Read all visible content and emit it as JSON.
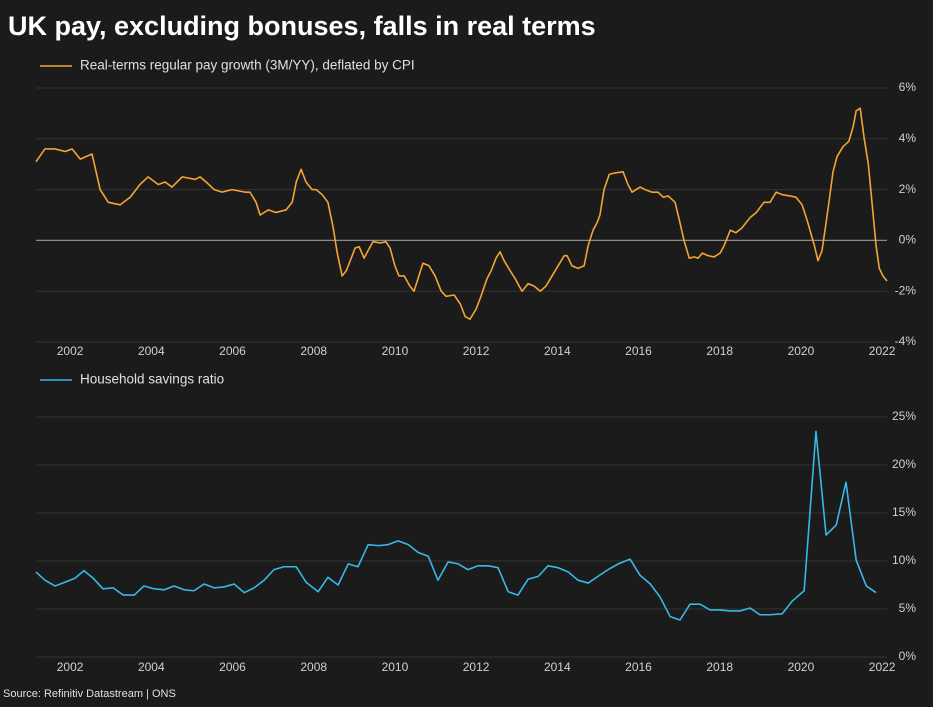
{
  "title": "UK pay, excluding bonuses, falls in real terms",
  "source": "Source: Refinitiv Datastream | ONS",
  "chart_data": [
    {
      "type": "line",
      "zero_line": true,
      "grid": true,
      "x": [
        2001.16,
        2001.38,
        2001.63,
        2001.88,
        2002.05,
        2002.25,
        2002.54,
        2002.74,
        2002.94,
        2003.23,
        2003.48,
        2003.72,
        2003.92,
        2004.17,
        2004.34,
        2004.51,
        2004.76,
        2005.08,
        2005.2,
        2005.35,
        2005.55,
        2005.74,
        2005.99,
        2006.31,
        2006.43,
        2006.58,
        2006.68,
        2006.88,
        2007.07,
        2007.32,
        2007.47,
        2007.57,
        2007.69,
        2007.81,
        2007.96,
        2008.06,
        2008.21,
        2008.35,
        2008.48,
        2008.58,
        2008.7,
        2008.8,
        2008.9,
        2009.02,
        2009.12,
        2009.24,
        2009.34,
        2009.46,
        2009.64,
        2009.78,
        2009.88,
        2010.0,
        2010.1,
        2010.23,
        2010.37,
        2010.47,
        2010.57,
        2010.69,
        2010.84,
        2010.99,
        2011.14,
        2011.26,
        2011.46,
        2011.61,
        2011.73,
        2011.85,
        2012.0,
        2012.12,
        2012.27,
        2012.37,
        2012.49,
        2012.59,
        2012.69,
        2012.84,
        2012.96,
        2013.13,
        2013.28,
        2013.43,
        2013.58,
        2013.72,
        2013.87,
        2014.02,
        2014.17,
        2014.24,
        2014.36,
        2014.51,
        2014.66,
        2014.76,
        2014.88,
        2014.98,
        2015.05,
        2015.15,
        2015.28,
        2015.4,
        2015.62,
        2015.74,
        2015.84,
        2015.94,
        2016.04,
        2016.16,
        2016.33,
        2016.48,
        2016.61,
        2016.73,
        2016.9,
        2017.02,
        2017.12,
        2017.25,
        2017.37,
        2017.47,
        2017.57,
        2017.71,
        2017.86,
        2018.01,
        2018.11,
        2018.26,
        2018.4,
        2018.55,
        2018.75,
        2018.9,
        2019.09,
        2019.24,
        2019.39,
        2019.54,
        2019.73,
        2019.88,
        2020.03,
        2020.17,
        2020.33,
        2020.42,
        2020.52,
        2020.62,
        2020.69,
        2020.79,
        2020.89,
        2021.04,
        2021.18,
        2021.29,
        2021.36,
        2021.46,
        2021.56,
        2021.66,
        2021.75,
        2021.85,
        2021.93,
        2022.02,
        2022.12
      ],
      "series": [
        {
          "name": "Real-terms regular pay growth (3M/YY), deflated by CPI",
          "color": "#f4a433",
          "values": [
            3.1,
            3.6,
            3.6,
            3.5,
            3.6,
            3.2,
            3.4,
            2.0,
            1.5,
            1.4,
            1.7,
            2.2,
            2.5,
            2.2,
            2.3,
            2.1,
            2.5,
            2.4,
            2.5,
            2.3,
            2.0,
            1.9,
            2.0,
            1.9,
            1.9,
            1.5,
            1.0,
            1.2,
            1.1,
            1.2,
            1.5,
            2.3,
            2.8,
            2.3,
            2.0,
            2.0,
            1.8,
            1.5,
            0.5,
            -0.5,
            -1.4,
            -1.2,
            -0.8,
            -0.3,
            -0.25,
            -0.7,
            -0.4,
            -0.05,
            -0.1,
            -0.05,
            -0.3,
            -1.0,
            -1.4,
            -1.4,
            -1.8,
            -2.0,
            -1.5,
            -0.9,
            -1.0,
            -1.4,
            -2.0,
            -2.2,
            -2.15,
            -2.5,
            -3.0,
            -3.1,
            -2.7,
            -2.2,
            -1.5,
            -1.2,
            -0.7,
            -0.45,
            -0.8,
            -1.2,
            -1.5,
            -2.0,
            -1.7,
            -1.8,
            -2.0,
            -1.8,
            -1.4,
            -1.0,
            -0.6,
            -0.6,
            -1.0,
            -1.1,
            -1.0,
            -0.2,
            0.4,
            0.7,
            1.0,
            2.0,
            2.6,
            2.65,
            2.7,
            2.2,
            1.9,
            2.0,
            2.1,
            2.0,
            1.9,
            1.9,
            1.7,
            1.75,
            1.5,
            0.7,
            0,
            -0.7,
            -0.65,
            -0.7,
            -0.5,
            -0.6,
            -0.65,
            -0.5,
            -0.2,
            0.4,
            0.3,
            0.5,
            0.9,
            1.1,
            1.5,
            1.5,
            1.9,
            1.8,
            1.75,
            1.7,
            1.4,
            0.7,
            -0.2,
            -0.8,
            -0.4,
            0.7,
            1.5,
            2.7,
            3.3,
            3.7,
            3.9,
            4.5,
            5.1,
            5.2,
            4.0,
            3.0,
            1.5,
            -0.2,
            -1.1,
            -1.4,
            -1.6
          ]
        }
      ],
      "xlim": [
        2001.16,
        2022.12
      ],
      "xticks": [
        2002,
        2004,
        2006,
        2008,
        2010,
        2012,
        2014,
        2016,
        2018,
        2020,
        2022
      ],
      "ylim": [
        -4,
        6
      ],
      "yticks": [
        {
          "value": -4,
          "label": "-4%"
        },
        {
          "value": -2,
          "label": "-2%"
        },
        {
          "value": 0,
          "label": "0%"
        },
        {
          "value": 2,
          "label": "2%"
        },
        {
          "value": 4,
          "label": "4%"
        },
        {
          "value": 6,
          "label": "6%"
        }
      ]
    },
    {
      "type": "line",
      "grid": true,
      "x": [
        2001.16,
        2001.38,
        2001.63,
        2001.88,
        2002.12,
        2002.34,
        2002.57,
        2002.81,
        2003.06,
        2003.31,
        2003.58,
        2003.82,
        2004.07,
        2004.32,
        2004.56,
        2004.81,
        2005.05,
        2005.3,
        2005.55,
        2005.79,
        2006.04,
        2006.29,
        2006.53,
        2006.78,
        2007.02,
        2007.27,
        2007.57,
        2007.81,
        2008.11,
        2008.35,
        2008.6,
        2008.85,
        2009.09,
        2009.34,
        2009.59,
        2009.83,
        2010.08,
        2010.33,
        2010.57,
        2010.82,
        2011.06,
        2011.31,
        2011.56,
        2011.8,
        2012.05,
        2012.3,
        2012.54,
        2012.79,
        2013.03,
        2013.28,
        2013.53,
        2013.77,
        2014.02,
        2014.27,
        2014.51,
        2014.76,
        2015.0,
        2015.25,
        2015.5,
        2015.79,
        2016.04,
        2016.29,
        2016.53,
        2016.78,
        2017.02,
        2017.27,
        2017.52,
        2017.76,
        2018.01,
        2018.26,
        2018.5,
        2018.75,
        2018.99,
        2019.24,
        2019.54,
        2019.78,
        2020.08,
        2020.37,
        2020.62,
        2020.87,
        2021.11,
        2021.36,
        2021.61,
        2021.85
      ],
      "series": [
        {
          "name": "Household savings ratio",
          "color": "#36b8e8",
          "values": [
            8.85,
            8.0,
            7.4,
            7.8,
            8.2,
            9.0,
            8.2,
            7.1,
            7.2,
            6.45,
            6.45,
            7.4,
            7.1,
            7.0,
            7.4,
            7.0,
            6.9,
            7.6,
            7.2,
            7.3,
            7.6,
            6.7,
            7.2,
            8.0,
            9.1,
            9.4,
            9.4,
            7.8,
            6.8,
            8.3,
            7.5,
            9.7,
            9.4,
            11.7,
            11.6,
            11.7,
            12.1,
            11.7,
            10.9,
            10.5,
            8.0,
            9.9,
            9.7,
            9.1,
            9.5,
            9.5,
            9.3,
            6.8,
            6.45,
            8.1,
            8.4,
            9.5,
            9.3,
            8.85,
            8.0,
            7.7,
            8.4,
            9.1,
            9.7,
            10.2,
            8.5,
            7.6,
            6.25,
            4.2,
            3.85,
            5.5,
            5.5,
            4.9,
            4.9,
            4.8,
            4.8,
            5.1,
            4.4,
            4.4,
            4.5,
            5.8,
            6.9,
            23.5,
            12.7,
            13.75,
            18.2,
            10.1,
            7.4,
            6.7
          ]
        }
      ],
      "xlim": [
        2001.16,
        2022.12
      ],
      "xticks": [
        2002,
        2004,
        2006,
        2008,
        2010,
        2012,
        2014,
        2016,
        2018,
        2020,
        2022
      ],
      "ylim": [
        0,
        25
      ],
      "yticks": [
        {
          "value": 0,
          "label": "0%"
        },
        {
          "value": 5,
          "label": "5%"
        },
        {
          "value": 10,
          "label": "10%"
        },
        {
          "value": 15,
          "label": "15%"
        },
        {
          "value": 20,
          "label": "20%"
        },
        {
          "value": 25,
          "label": "25%"
        }
      ]
    }
  ]
}
